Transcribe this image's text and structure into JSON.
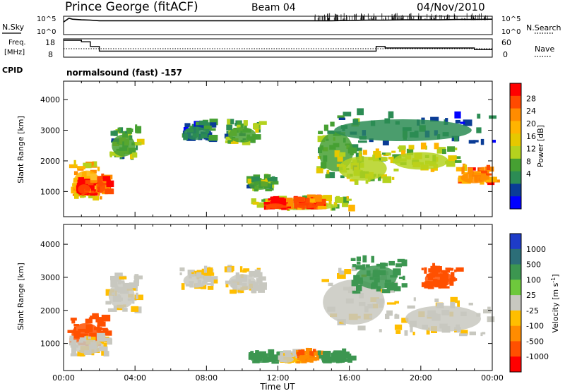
{
  "header": {
    "station": "Prince George (fitACF)",
    "beam": "Beam 04",
    "date": "04/Nov/2010"
  },
  "noise_panel": {
    "left_label": "N.Sky",
    "left_ticks": [
      "10^5",
      "10^0"
    ],
    "right_label": "N.Search",
    "right_ticks": [
      "10^5",
      "10^0"
    ]
  },
  "freq_panel": {
    "left_label_1": "Freq.",
    "left_label_2": "[MHz]",
    "left_ticks": [
      "18",
      "8"
    ],
    "right_label": "Nave",
    "right_ticks": [
      "60",
      "0"
    ]
  },
  "cpid": {
    "label": "CPID",
    "value": "normalsound (fast) -157"
  },
  "power_colorbar": {
    "label": "Power [dB]",
    "ticks": [
      "28",
      "24",
      "20",
      "16",
      "12",
      "8",
      "4"
    ],
    "colors": [
      "#ff0000",
      "#ff4a00",
      "#ff8c00",
      "#ffb400",
      "#e6c800",
      "#b4d21e",
      "#46a032",
      "#2c8c54",
      "#0a3c96",
      "#0000ff"
    ]
  },
  "velocity_colorbar": {
    "label_main": "Velocity [m s",
    "label_sup": "-1",
    "label_end": "]",
    "ticks": [
      "1000",
      "500",
      "100",
      "25",
      "-25",
      "-100",
      "-500",
      "-1000"
    ],
    "colors": [
      "#1e3cc8",
      "#2c6e78",
      "#3c9650",
      "#6ec83c",
      "#c8c8c0",
      "#ffbe00",
      "#ff8c00",
      "#ff5000",
      "#ff0000"
    ]
  },
  "axes": {
    "ylabel": "Slant Range [km]",
    "xlabel": "Time UT"
  },
  "chart_data": [
    {
      "type": "line",
      "name": "noise",
      "x_hours": [
        0,
        0.3,
        0.5,
        1,
        1.5,
        2,
        2.5,
        3,
        4,
        5,
        6,
        7,
        8,
        9,
        10,
        11,
        12,
        13,
        14,
        15,
        16,
        17,
        18,
        19,
        20,
        21,
        22,
        23,
        24
      ],
      "series": [
        {
          "name": "N.Sky",
          "values_log10": [
            3.6,
            4.8,
            4.5,
            4.3,
            4.2,
            4.0,
            4.0,
            4.0,
            4.0,
            4.0,
            4.0,
            4.0,
            4.0,
            4.0,
            4.0,
            4.0,
            4.0,
            4.0,
            4.0,
            4.0,
            4.1,
            4.2,
            4.2,
            4.3,
            4.3,
            4.3,
            4.4,
            4.4,
            4.5
          ]
        }
      ],
      "ylim_log10": [
        0,
        5
      ],
      "xlim_hours": [
        0,
        24
      ]
    },
    {
      "type": "line",
      "name": "frequency_nave",
      "x_hours": [
        0,
        0.5,
        1,
        1.5,
        2,
        3,
        4,
        6,
        8,
        10,
        11,
        12,
        13,
        14,
        15,
        16,
        17,
        17.5,
        18,
        19,
        20,
        22,
        23,
        24
      ],
      "series": [
        {
          "name": "Freq",
          "values": [
            18,
            18,
            17,
            14,
            11,
            11,
            11,
            11,
            11,
            11,
            11,
            11,
            11,
            11,
            11,
            11,
            11,
            14,
            13,
            13,
            13,
            13,
            12,
            12
          ]
        }
      ],
      "ylim": [
        8,
        18
      ],
      "xlim_hours": [
        0,
        24
      ]
    },
    {
      "type": "heatmap",
      "name": "power",
      "x_label": "Time UT",
      "y_label": "Slant Range [km]",
      "xticks": [
        "00:00",
        "04:00",
        "08:00",
        "12:00",
        "16:00",
        "20:00",
        "00:00"
      ],
      "yticks": [
        1000,
        2000,
        3000,
        4000
      ],
      "xlim_hours": [
        0,
        24
      ],
      "ylim_km": [
        180,
        4600
      ],
      "blobs": [
        {
          "t0": 0.3,
          "t1": 2.3,
          "r0": 700,
          "r1": 1850,
          "level": 20
        },
        {
          "t0": 0.7,
          "t1": 1.6,
          "r0": 850,
          "r1": 1300,
          "level": 28
        },
        {
          "t0": 1.8,
          "t1": 2.4,
          "r0": 900,
          "r1": 1400,
          "level": 26
        },
        {
          "t0": 2.5,
          "t1": 4.2,
          "r0": 2000,
          "r1": 3000,
          "level": 12
        },
        {
          "t0": 6.5,
          "t1": 8.3,
          "r0": 2600,
          "r1": 3200,
          "level": 8
        },
        {
          "t0": 9.0,
          "t1": 11.0,
          "r0": 2500,
          "r1": 3200,
          "level": 12
        },
        {
          "t0": 10.2,
          "t1": 11.8,
          "r0": 1000,
          "r1": 1400,
          "level": 12
        },
        {
          "t0": 10.5,
          "t1": 16.0,
          "r0": 350,
          "r1": 700,
          "level": 16
        },
        {
          "t0": 11.2,
          "t1": 12.5,
          "r0": 400,
          "r1": 650,
          "level": 28
        },
        {
          "t0": 12.8,
          "t1": 14.3,
          "r0": 400,
          "r1": 700,
          "level": 26
        },
        {
          "t0": 14.0,
          "t1": 16.5,
          "r0": 1400,
          "r1": 3200,
          "level": 12
        },
        {
          "t0": 15.0,
          "t1": 18.5,
          "r0": 1200,
          "r1": 2300,
          "level": 16
        },
        {
          "t0": 18.0,
          "t1": 22.0,
          "r0": 1600,
          "r1": 2400,
          "level": 16
        },
        {
          "t0": 22.0,
          "t1": 24.0,
          "r0": 1200,
          "r1": 1700,
          "level": 24
        },
        {
          "t0": 14.0,
          "t1": 24.0,
          "r0": 2500,
          "r1": 3500,
          "level": 8
        }
      ]
    },
    {
      "type": "heatmap",
      "name": "velocity",
      "x_label": "Time UT",
      "y_label": "Slant Range [km]",
      "xticks": [
        "00:00",
        "04:00",
        "08:00",
        "12:00",
        "16:00",
        "20:00",
        "00:00"
      ],
      "yticks": [
        1000,
        2000,
        3000,
        4000
      ],
      "xlim_hours": [
        0,
        24
      ],
      "ylim_km": [
        180,
        4600
      ],
      "blobs": [
        {
          "t0": 0.2,
          "t1": 2.3,
          "r0": 800,
          "r1": 1750,
          "velocity": -300
        },
        {
          "t0": 0.3,
          "t1": 2.5,
          "r0": 600,
          "r1": 1200,
          "velocity": 0
        },
        {
          "t0": 2.3,
          "t1": 4.2,
          "r0": 1900,
          "r1": 3000,
          "velocity": 0
        },
        {
          "t0": 6.5,
          "t1": 8.3,
          "r0": 2600,
          "r1": 3200,
          "velocity": 0
        },
        {
          "t0": 9.0,
          "t1": 11.0,
          "r0": 2500,
          "r1": 3200,
          "velocity": 0
        },
        {
          "t0": 10.3,
          "t1": 12.0,
          "r0": 380,
          "r1": 620,
          "velocity": 150
        },
        {
          "t0": 12.0,
          "t1": 13.0,
          "r0": 380,
          "r1": 650,
          "velocity": 0
        },
        {
          "t0": 13.0,
          "t1": 14.2,
          "r0": 380,
          "r1": 700,
          "velocity": -200
        },
        {
          "t0": 14.2,
          "t1": 16.0,
          "r0": 380,
          "r1": 650,
          "velocity": 150
        },
        {
          "t0": 14.0,
          "t1": 18.5,
          "r0": 1300,
          "r1": 3200,
          "velocity": 0
        },
        {
          "t0": 18.5,
          "t1": 24.0,
          "r0": 1200,
          "r1": 2300,
          "velocity": 0
        },
        {
          "t0": 16.0,
          "t1": 19.0,
          "r0": 2500,
          "r1": 3500,
          "velocity": 150
        },
        {
          "t0": 20.0,
          "t1": 22.0,
          "r0": 2600,
          "r1": 3300,
          "velocity": -400
        }
      ]
    }
  ]
}
